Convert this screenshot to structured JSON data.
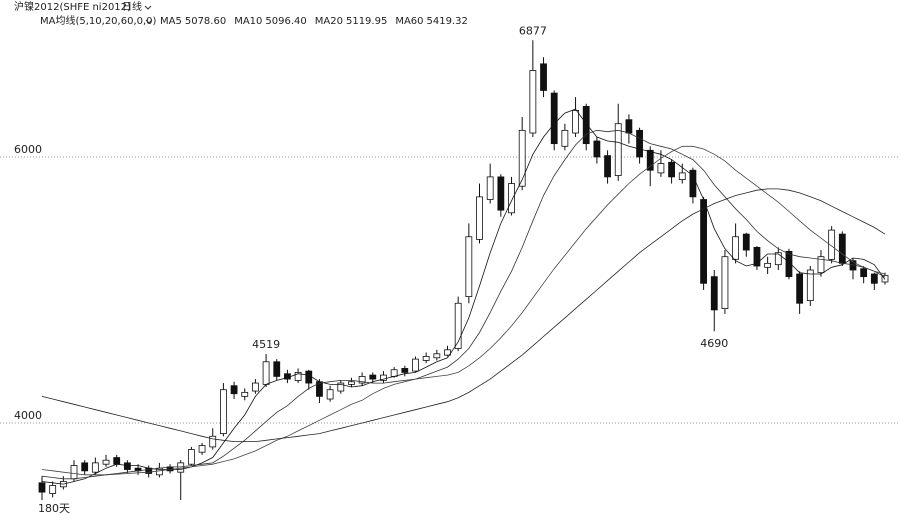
{
  "chart_data": {
    "type": "candlestick",
    "title": "沪镍2012(SHFE ni2012)",
    "period": "日线",
    "indicator": "MA均线(5,10,20,60,0,0)",
    "footer": "180天",
    "ylim": [
      3308,
      7180
    ],
    "yticks": [
      4000,
      6000
    ],
    "grid": true,
    "up_color": "#ffffff",
    "down_color": "#111111",
    "open": [
      3550,
      3470,
      3520,
      3580,
      3700,
      3630,
      3690,
      3740,
      3700,
      3660,
      3660,
      3610,
      3670,
      3630,
      3690,
      3780,
      3820,
      3920,
      4280,
      4200,
      4240,
      4290,
      4460,
      4370,
      4320,
      4390,
      4310,
      4180,
      4240,
      4290,
      4300,
      4360,
      4320,
      4350,
      4410,
      4390,
      4470,
      4490,
      4510,
      4560,
      4950,
      5380,
      5680,
      5850,
      5580,
      5780,
      6180,
      6700,
      6480,
      6080,
      6180,
      6380,
      6120,
      6010,
      5860,
      6280,
      6200,
      6050,
      5880,
      5960,
      5830,
      5900,
      5680,
      5100,
      4860,
      5230,
      5420,
      5320,
      5170,
      5190,
      5290,
      5120,
      4920,
      5130,
      5230,
      5420,
      5220,
      5160,
      5120,
      5060
    ],
    "high": [
      3600,
      3560,
      3600,
      3720,
      3720,
      3740,
      3760,
      3760,
      3720,
      3690,
      3680,
      3700,
      3690,
      3720,
      3820,
      3850,
      3960,
      4300,
      4310,
      4260,
      4330,
      4519,
      4480,
      4400,
      4410,
      4400,
      4330,
      4280,
      4320,
      4340,
      4380,
      4380,
      4390,
      4420,
      4430,
      4500,
      4530,
      4550,
      4580,
      4950,
      5500,
      5800,
      5950,
      5870,
      5850,
      6300,
      6877,
      6750,
      6500,
      6250,
      6450,
      6400,
      6150,
      6050,
      6400,
      6320,
      6220,
      6080,
      6050,
      5980,
      5950,
      5920,
      5700,
      5150,
      5300,
      5500,
      5430,
      5330,
      5250,
      5320,
      5310,
      5140,
      5180,
      5300,
      5480,
      5440,
      5240,
      5180,
      5130,
      5130
    ],
    "low": [
      3420,
      3440,
      3500,
      3560,
      3610,
      3610,
      3670,
      3670,
      3620,
      3610,
      3590,
      3590,
      3620,
      3420,
      3680,
      3760,
      3800,
      3900,
      4180,
      4170,
      4220,
      4270,
      4320,
      4300,
      4300,
      4250,
      4150,
      4160,
      4220,
      4270,
      4280,
      4300,
      4300,
      4340,
      4350,
      4380,
      4450,
      4470,
      4500,
      4540,
      4900,
      5350,
      5650,
      5550,
      5560,
      5750,
      6150,
      6450,
      6050,
      6050,
      6150,
      6050,
      5950,
      5800,
      5820,
      6100,
      5950,
      5780,
      5850,
      5800,
      5800,
      5650,
      5000,
      4690,
      4820,
      5200,
      5250,
      5150,
      5120,
      5150,
      5080,
      4820,
      4880,
      5100,
      5200,
      5180,
      5080,
      5050,
      5000,
      5040
    ],
    "close": [
      3480,
      3530,
      3560,
      3680,
      3640,
      3700,
      3720,
      3690,
      3650,
      3640,
      3620,
      3660,
      3640,
      3700,
      3800,
      3830,
      3900,
      4250,
      4220,
      4230,
      4300,
      4460,
      4350,
      4330,
      4380,
      4300,
      4200,
      4250,
      4300,
      4310,
      4350,
      4330,
      4360,
      4400,
      4380,
      4480,
      4500,
      4520,
      4550,
      4900,
      5400,
      5700,
      5850,
      5600,
      5800,
      6200,
      6650,
      6500,
      6100,
      6200,
      6350,
      6100,
      6000,
      5850,
      6250,
      6180,
      6000,
      5900,
      5950,
      5850,
      5880,
      5700,
      5050,
      4850,
      5250,
      5400,
      5300,
      5180,
      5200,
      5280,
      5100,
      4900,
      5150,
      5250,
      5450,
      5200,
      5150,
      5100,
      5050,
      5110
    ],
    "series": [
      {
        "name": "MA5",
        "color": "#111111",
        "last_label": "5078.60",
        "values": [
          3560,
          3550,
          3540,
          3560,
          3580,
          3620,
          3660,
          3690,
          3680,
          3680,
          3660,
          3650,
          3650,
          3650,
          3670,
          3700,
          3740,
          3850,
          3960,
          4060,
          4200,
          4290,
          4320,
          4340,
          4370,
          4360,
          4310,
          4290,
          4290,
          4270,
          4280,
          4310,
          4330,
          4350,
          4370,
          4380,
          4420,
          4460,
          4490,
          4610,
          4790,
          5030,
          5280,
          5500,
          5670,
          5830,
          6020,
          6150,
          6250,
          6330,
          6360,
          6250,
          6150,
          6120,
          6110,
          6080,
          6060,
          6040,
          6020,
          5980,
          5920,
          5860,
          5680,
          5460,
          5310,
          5220,
          5180,
          5200,
          5270,
          5270,
          5210,
          5130,
          5120,
          5120,
          5170,
          5190,
          5240,
          5230,
          5190,
          5078.6
        ]
      },
      {
        "name": "MA10",
        "color": "#333333",
        "last_label": "5096.40",
        "values": [
          3600,
          3590,
          3580,
          3580,
          3590,
          3600,
          3610,
          3620,
          3630,
          3640,
          3650,
          3660,
          3670,
          3670,
          3680,
          3690,
          3700,
          3750,
          3810,
          3870,
          3940,
          4010,
          4080,
          4130,
          4200,
          4260,
          4300,
          4310,
          4320,
          4320,
          4310,
          4300,
          4300,
          4310,
          4320,
          4330,
          4360,
          4390,
          4420,
          4480,
          4560,
          4680,
          4830,
          4990,
          5140,
          5320,
          5520,
          5710,
          5860,
          5980,
          6090,
          6170,
          6200,
          6190,
          6200,
          6180,
          6140,
          6100,
          6080,
          6060,
          6020,
          5980,
          5900,
          5790,
          5700,
          5610,
          5530,
          5440,
          5370,
          5310,
          5270,
          5250,
          5240,
          5230,
          5220,
          5200,
          5190,
          5170,
          5140,
          5096.4
        ]
      },
      {
        "name": "MA20",
        "color": "#444444",
        "last_label": "5119.95",
        "values": [
          3650,
          3640,
          3630,
          3620,
          3610,
          3610,
          3610,
          3615,
          3620,
          3625,
          3630,
          3640,
          3650,
          3660,
          3670,
          3680,
          3690,
          3710,
          3730,
          3760,
          3790,
          3830,
          3870,
          3900,
          3940,
          3980,
          4020,
          4060,
          4100,
          4140,
          4170,
          4220,
          4260,
          4290,
          4310,
          4330,
          4340,
          4350,
          4360,
          4380,
          4430,
          4490,
          4560,
          4640,
          4730,
          4830,
          4940,
          5050,
          5160,
          5260,
          5360,
          5460,
          5550,
          5640,
          5720,
          5800,
          5870,
          5930,
          5990,
          6040,
          6080,
          6080,
          6060,
          6020,
          5970,
          5900,
          5840,
          5780,
          5720,
          5660,
          5590,
          5520,
          5450,
          5390,
          5330,
          5270,
          5210,
          5170,
          5140,
          5119.95
        ]
      },
      {
        "name": "MA60",
        "color": "#222222",
        "last_label": "5419.32",
        "values": [
          4200,
          4180,
          4160,
          4140,
          4120,
          4100,
          4080,
          4060,
          4040,
          4020,
          4000,
          3980,
          3960,
          3940,
          3920,
          3900,
          3880,
          3870,
          3860,
          3860,
          3860,
          3870,
          3880,
          3890,
          3900,
          3910,
          3920,
          3940,
          3960,
          3980,
          4000,
          4020,
          4040,
          4060,
          4080,
          4100,
          4120,
          4140,
          4160,
          4190,
          4230,
          4280,
          4330,
          4390,
          4450,
          4510,
          4580,
          4650,
          4720,
          4790,
          4860,
          4930,
          5000,
          5070,
          5140,
          5210,
          5280,
          5340,
          5400,
          5460,
          5520,
          5570,
          5610,
          5650,
          5680,
          5710,
          5730,
          5750,
          5760,
          5760,
          5750,
          5730,
          5700,
          5670,
          5630,
          5590,
          5550,
          5510,
          5470,
          5419.32
        ]
      }
    ],
    "annotations": [
      {
        "value": 6877
      },
      {
        "value": 4519
      },
      {
        "value": 4690
      }
    ]
  }
}
